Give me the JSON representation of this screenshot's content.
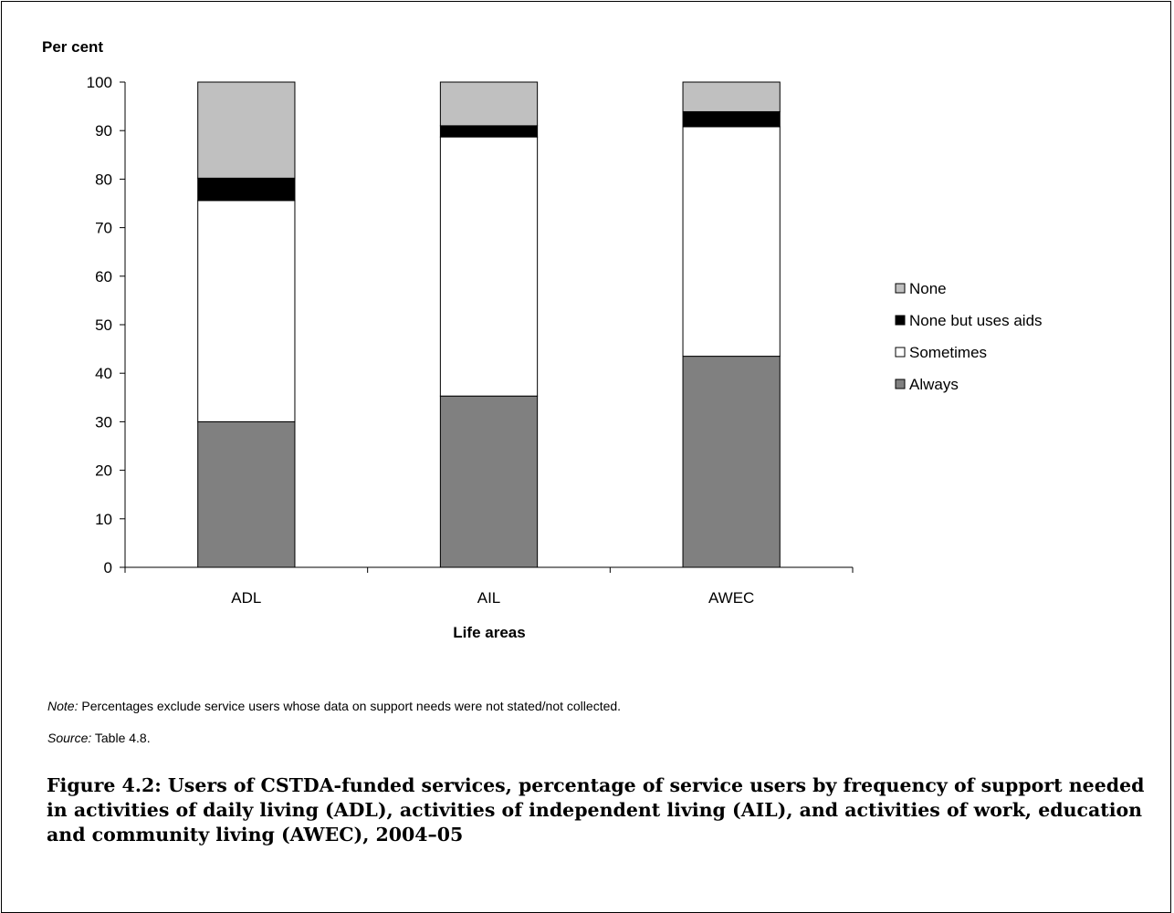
{
  "chart_data": {
    "type": "bar",
    "stacked": true,
    "ylabel": "Per cent",
    "xlabel": "Life areas",
    "ylim": [
      0,
      100
    ],
    "yticks": [
      0,
      10,
      20,
      30,
      40,
      50,
      60,
      70,
      80,
      90,
      100
    ],
    "categories": [
      "ADL",
      "AIL",
      "AWEC"
    ],
    "series": [
      {
        "name": "Always",
        "values": [
          30,
          35.3,
          43.5
        ],
        "color": "#808080"
      },
      {
        "name": "Sometimes",
        "values": [
          45.6,
          53.4,
          47.3
        ],
        "color": "#ffffff"
      },
      {
        "name": "None but uses aids",
        "values": [
          4.6,
          2.3,
          3.1
        ],
        "color": "#000000"
      },
      {
        "name": "None",
        "values": [
          19.8,
          9.0,
          6.1
        ],
        "color": "#c0c0c0"
      }
    ],
    "legend_order": [
      "None",
      "None but uses aids",
      "Sometimes",
      "Always"
    ],
    "legend_position": "right",
    "grid": false
  },
  "note": {
    "label": "Note:",
    "text": " Percentages exclude service users whose data on support needs were not stated/not collected."
  },
  "source": {
    "label": "Source:",
    "text": " Table 4.8."
  },
  "caption": "Figure 4.2: Users of CSTDA-funded services, percentage of service users by frequency of support needed in activities of daily living (ADL), activities of independent living (AIL), and activities of work, education and community living (AWEC), 2004–05"
}
